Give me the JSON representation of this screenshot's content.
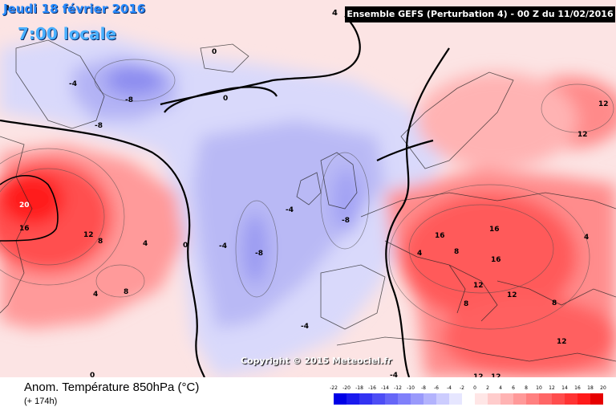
{
  "header": {
    "date_label": "Jeudi 18 février 2016",
    "time_label": "7:00 locale",
    "run_number": "4",
    "run_label": "Ensemble GEFS  (Perturbation 4)  -  00 Z du 11/02/2016"
  },
  "map": {
    "copyright": "Copyright © 2015 Meteociel.fr",
    "contour_labels": [
      {
        "text": "20",
        "fill": "#ffffff"
      },
      {
        "text": "16",
        "fill": "#000000"
      },
      {
        "text": "12",
        "fill": "#000000"
      },
      {
        "text": "8",
        "fill": "#000000"
      },
      {
        "text": "8",
        "fill": "#000000"
      },
      {
        "text": "4",
        "fill": "#000000"
      },
      {
        "text": "0",
        "fill": "#000000"
      },
      {
        "text": "4",
        "fill": "#000000"
      },
      {
        "text": "-8",
        "fill": "#000000"
      },
      {
        "text": "-8",
        "fill": "#000000"
      },
      {
        "text": "-4",
        "fill": "#000000"
      },
      {
        "text": "-4",
        "fill": "#000000"
      },
      {
        "text": "-8",
        "fill": "#000000"
      },
      {
        "text": "-4",
        "fill": "#000000"
      },
      {
        "text": "-8",
        "fill": "#000000"
      },
      {
        "text": "-4",
        "fill": "#000000"
      },
      {
        "text": "-4",
        "fill": "#000000"
      },
      {
        "text": "0",
        "fill": "#000000"
      },
      {
        "text": "0",
        "fill": "#000000"
      },
      {
        "text": "0",
        "fill": "#000000"
      },
      {
        "text": "16",
        "fill": "#000000"
      },
      {
        "text": "16",
        "fill": "#000000"
      },
      {
        "text": "16",
        "fill": "#000000"
      },
      {
        "text": "12",
        "fill": "#000000"
      },
      {
        "text": "12",
        "fill": "#000000"
      },
      {
        "text": "12",
        "fill": "#000000"
      },
      {
        "text": "12",
        "fill": "#000000"
      },
      {
        "text": "12",
        "fill": "#000000"
      },
      {
        "text": "12",
        "fill": "#000000"
      },
      {
        "text": "12",
        "fill": "#000000"
      },
      {
        "text": "8",
        "fill": "#000000"
      },
      {
        "text": "8",
        "fill": "#000000"
      },
      {
        "text": "4",
        "fill": "#000000"
      },
      {
        "text": "4",
        "fill": "#000000"
      },
      {
        "text": "4",
        "fill": "#000000"
      },
      {
        "text": "8",
        "fill": "#000000"
      }
    ]
  },
  "legend": {
    "title": "Anom. Température 850hPa (°C)",
    "subtitle": "(+ 174h)",
    "ticks": [
      "-22",
      "-20",
      "-18",
      "-16",
      "-14",
      "-12",
      "-10",
      "-8",
      "-6",
      "-4",
      "-2",
      "0",
      "2",
      "4",
      "6",
      "8",
      "10",
      "12",
      "14",
      "16",
      "18",
      "20"
    ],
    "colors": [
      "#0000e6",
      "#1a1aee",
      "#3333f2",
      "#4d4df5",
      "#6666f7",
      "#8080fa",
      "#9999fb",
      "#b3b3fd",
      "#ccccfe",
      "#e6e6ff",
      "#ffffff",
      "#ffe6e6",
      "#ffcccc",
      "#ffb3b3",
      "#ff9999",
      "#ff8080",
      "#ff6666",
      "#ff4d4d",
      "#ff3333",
      "#ff1a1a",
      "#e60000"
    ]
  }
}
